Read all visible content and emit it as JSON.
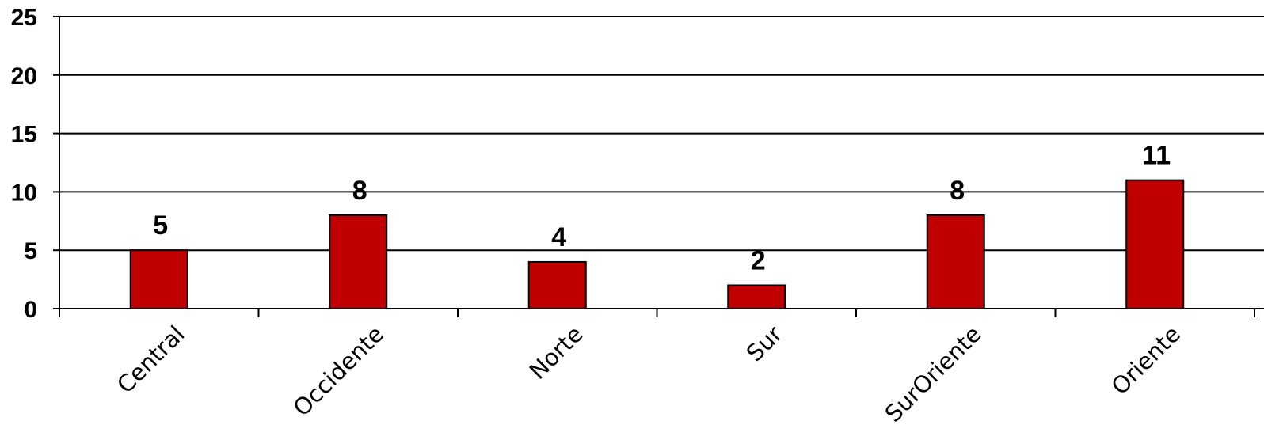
{
  "chart_data": {
    "type": "bar",
    "title": "",
    "xlabel": "",
    "ylabel": "",
    "categories": [
      "Central",
      "Occidente",
      "Norte",
      "Sur",
      "SurOriente",
      "Oriente"
    ],
    "values": [
      5,
      8,
      4,
      2,
      8,
      11
    ],
    "ylim": [
      0,
      25
    ],
    "yticks": [
      0,
      5,
      10,
      15,
      20,
      25
    ],
    "grid": true,
    "legend": "none",
    "colors": {
      "bar": "#c00000",
      "bar_border": "#000000"
    }
  }
}
